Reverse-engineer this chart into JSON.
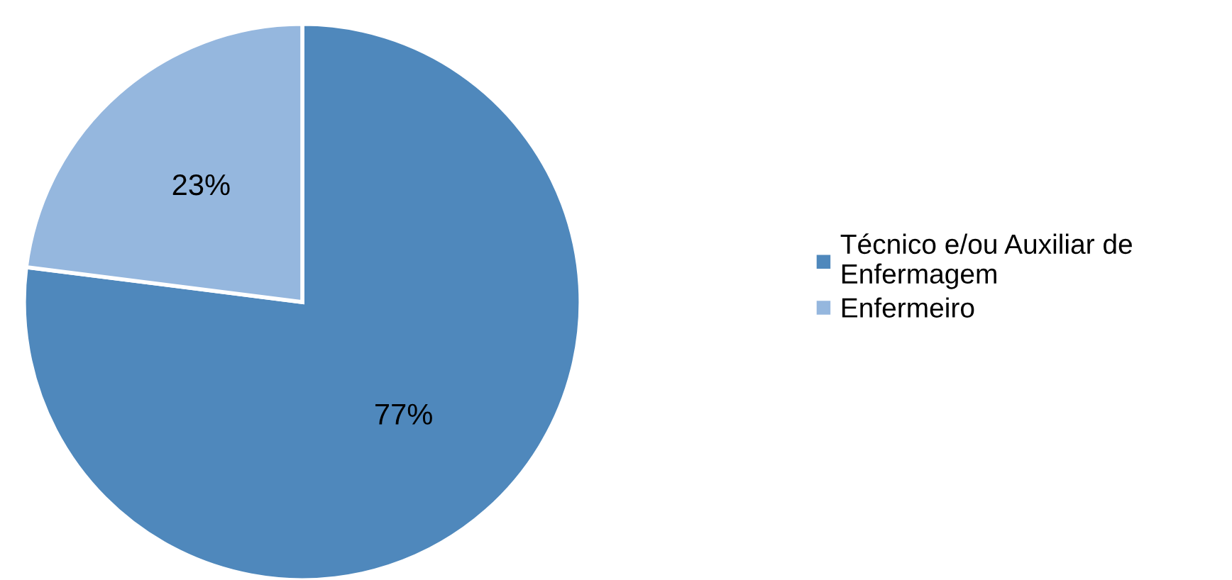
{
  "chart_data": {
    "type": "pie",
    "categories": [
      "Técnico e/ou Auxiliar de\nEnfermagem",
      "Enfermeiro"
    ],
    "values": [
      77,
      23
    ],
    "colors": [
      "#4f88bc",
      "#95b7de"
    ],
    "value_labels": [
      "77%",
      "23%"
    ],
    "legend": "right"
  }
}
